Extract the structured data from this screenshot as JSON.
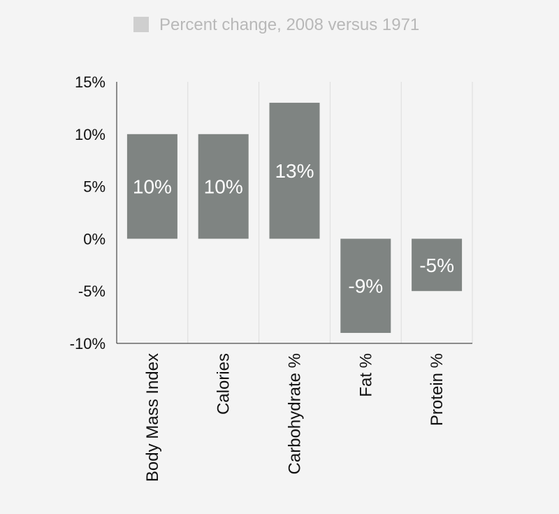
{
  "chart_data": {
    "type": "bar",
    "categories": [
      "Body Mass Index",
      "Calories",
      "Carbohydrate %",
      "Fat %",
      "Protein %"
    ],
    "series": [
      {
        "name": "Percent change, 2008 versus 1971",
        "values": [
          10,
          10,
          13,
          -9,
          -5
        ],
        "data_labels": [
          "10%",
          "10%",
          "13%",
          "-9%",
          "-5%"
        ]
      }
    ],
    "title": "",
    "xlabel": "",
    "ylabel": "",
    "ylim": [
      -10,
      15
    ],
    "yticks": [
      15,
      10,
      5,
      0,
      -5,
      -10
    ],
    "ytick_labels": [
      "15%",
      "10%",
      "5%",
      "0%",
      "-5%",
      "-10%"
    ],
    "grid": "vertical",
    "legend": "top-center",
    "colors": {
      "bar": "#7f8482",
      "legend_swatch": "#cfcfcf",
      "legend_text": "#b8b8b8",
      "axis": "#222222",
      "grid": "#dcdcdc",
      "background": "#f4f4f4"
    }
  }
}
